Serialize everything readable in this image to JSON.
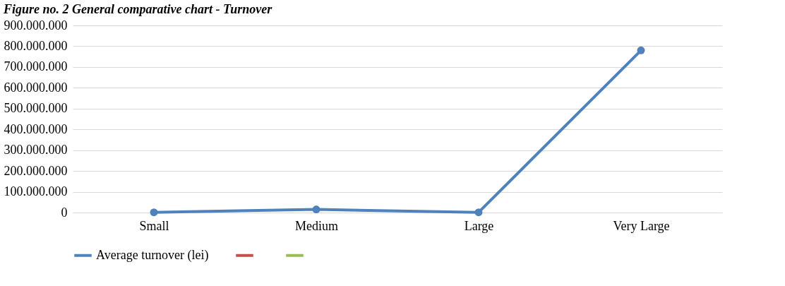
{
  "chart_data": {
    "type": "line",
    "title": "Figure no. 2 General comparative chart - Turnover",
    "categories": [
      "Small",
      "Medium",
      "Large",
      "Very Large"
    ],
    "series": [
      {
        "name": "Average turnover (lei)",
        "color": "#4f81bd",
        "values": [
          1000000,
          15000000,
          1000000,
          780000000
        ]
      },
      {
        "color": "#c0504d",
        "values": [
          null,
          null,
          null,
          null
        ]
      },
      {
        "color": "#9bbb59",
        "values": [
          null,
          null,
          null,
          null
        ]
      }
    ],
    "ylim": [
      0,
      900000000
    ],
    "yticks": [
      {
        "value": 0,
        "label": "0"
      },
      {
        "value": 100000000,
        "label": "100.000.000"
      },
      {
        "value": 200000000,
        "label": "200.000.000"
      },
      {
        "value": 300000000,
        "label": "300.000.000"
      },
      {
        "value": 400000000,
        "label": "400.000.000"
      },
      {
        "value": 500000000,
        "label": "500.000.000"
      },
      {
        "value": 600000000,
        "label": "600.000.000"
      },
      {
        "value": 700000000,
        "label": "700.000.000"
      },
      {
        "value": 800000000,
        "label": "800.000.000"
      },
      {
        "value": 900000000,
        "label": "900.000.000"
      }
    ],
    "grid": "y",
    "legend": "bottom",
    "marker": "circle",
    "line_style": "solid"
  }
}
